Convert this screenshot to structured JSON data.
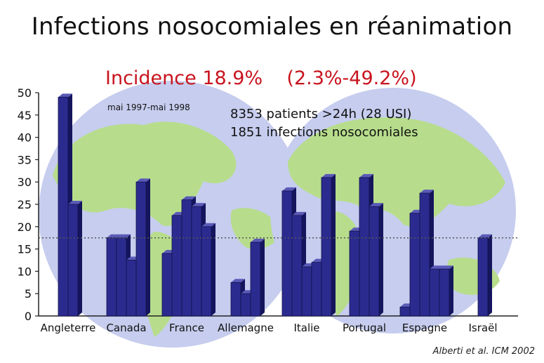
{
  "title": "Infections nosocomiales en réanimation",
  "incidence_text": "Incidence 18.9%    (2.3%-49.2%)",
  "period": "mai 1997-mai 1998",
  "stats": [
    "8353 patients >24h (28 USI)",
    "1851 infections nosocomiales"
  ],
  "source": "Alberti et al. ICM 2002",
  "colors": {
    "bar_front": "#2b2b8f",
    "bar_side": "#15155e",
    "bar_top": "#5a5ab8",
    "title_red": "#c8141e",
    "globe_ocean": "#c6cdee",
    "globe_land": "#b7dd8c"
  },
  "chart_data": {
    "type": "bar",
    "ylim": [
      0,
      50
    ],
    "yticks": [
      "0",
      "5",
      "10",
      "15",
      "20",
      "25",
      "30",
      "35",
      "40",
      "45",
      "50"
    ],
    "reference_line": 17.5,
    "groups": [
      {
        "label": "Angleterre",
        "values": [
          49,
          25
        ]
      },
      {
        "label": "Canada",
        "values": [
          17.5,
          17.5,
          12.5,
          30
        ]
      },
      {
        "label": "France",
        "values": [
          14,
          22.5,
          26,
          24.5,
          20
        ]
      },
      {
        "label": "Allemagne",
        "values": [
          7.5,
          5,
          16.5
        ]
      },
      {
        "label": "Italie",
        "values": [
          28,
          22.5,
          11,
          12,
          31
        ]
      },
      {
        "label": "Portugal",
        "values": [
          19,
          31,
          24.5
        ]
      },
      {
        "label": "Espagne",
        "values": [
          2,
          23,
          27.5,
          10.5,
          10.5
        ]
      },
      {
        "label": "Israël",
        "values": [
          17.5
        ]
      }
    ]
  }
}
